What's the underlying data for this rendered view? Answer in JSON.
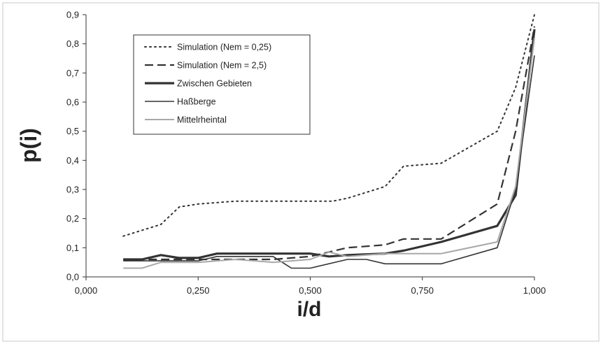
{
  "chart_data": {
    "type": "line",
    "xlabel": "i/d",
    "ylabel": "p(i)",
    "xlim": [
      0,
      1
    ],
    "ylim": [
      0,
      0.9
    ],
    "x_ticks": [
      "0,000",
      "0,250",
      "0,500",
      "0,750",
      "1,000"
    ],
    "y_ticks": [
      "0,0",
      "0,1",
      "0,2",
      "0,3",
      "0,4",
      "0,5",
      "0,6",
      "0,7",
      "0,8",
      "0,9"
    ],
    "grid": false,
    "legend_position": "top-left",
    "series": [
      {
        "name": "Simulation (Nem = 0,25)",
        "style": "dotted",
        "color": "#333333",
        "x": [
          0.083,
          0.167,
          0.208,
          0.25,
          0.333,
          0.417,
          0.5,
          0.55,
          0.583,
          0.667,
          0.708,
          0.792,
          0.917,
          0.958,
          1.0
        ],
        "y": [
          0.14,
          0.18,
          0.24,
          0.25,
          0.26,
          0.26,
          0.26,
          0.26,
          0.27,
          0.31,
          0.38,
          0.39,
          0.5,
          0.65,
          0.9
        ]
      },
      {
        "name": "Simulation (Nem = 2,5)",
        "style": "dashed",
        "color": "#333333",
        "x": [
          0.083,
          0.125,
          0.167,
          0.25,
          0.333,
          0.417,
          0.5,
          0.583,
          0.667,
          0.708,
          0.792,
          0.917,
          0.958,
          1.0
        ],
        "y": [
          0.06,
          0.06,
          0.06,
          0.06,
          0.06,
          0.06,
          0.07,
          0.1,
          0.11,
          0.13,
          0.13,
          0.25,
          0.5,
          0.86
        ]
      },
      {
        "name": "Zwischen Gebieten",
        "style": "thick",
        "color": "#333333",
        "x": [
          0.083,
          0.125,
          0.167,
          0.208,
          0.25,
          0.292,
          0.333,
          0.417,
          0.5,
          0.542,
          0.583,
          0.667,
          0.708,
          0.792,
          0.917,
          0.958,
          1.0
        ],
        "y": [
          0.06,
          0.06,
          0.075,
          0.065,
          0.065,
          0.08,
          0.08,
          0.08,
          0.08,
          0.07,
          0.075,
          0.08,
          0.09,
          0.12,
          0.175,
          0.28,
          0.85
        ]
      },
      {
        "name": "Haßberge",
        "style": "thin",
        "color": "#333333",
        "x": [
          0.083,
          0.125,
          0.167,
          0.25,
          0.292,
          0.417,
          0.458,
          0.5,
          0.583,
          0.625,
          0.667,
          0.792,
          0.917,
          0.958,
          1.0
        ],
        "y": [
          0.055,
          0.055,
          0.055,
          0.055,
          0.07,
          0.07,
          0.03,
          0.03,
          0.06,
          0.06,
          0.045,
          0.045,
          0.1,
          0.3,
          0.76
        ]
      },
      {
        "name": "Mittelrheintal",
        "style": "light",
        "color": "#a8a8a8",
        "x": [
          0.083,
          0.125,
          0.167,
          0.25,
          0.333,
          0.417,
          0.5,
          0.542,
          0.583,
          0.667,
          0.792,
          0.917,
          0.958,
          1.0
        ],
        "y": [
          0.03,
          0.03,
          0.05,
          0.05,
          0.06,
          0.05,
          0.06,
          0.085,
          0.07,
          0.08,
          0.08,
          0.12,
          0.31,
          0.82
        ]
      }
    ]
  }
}
